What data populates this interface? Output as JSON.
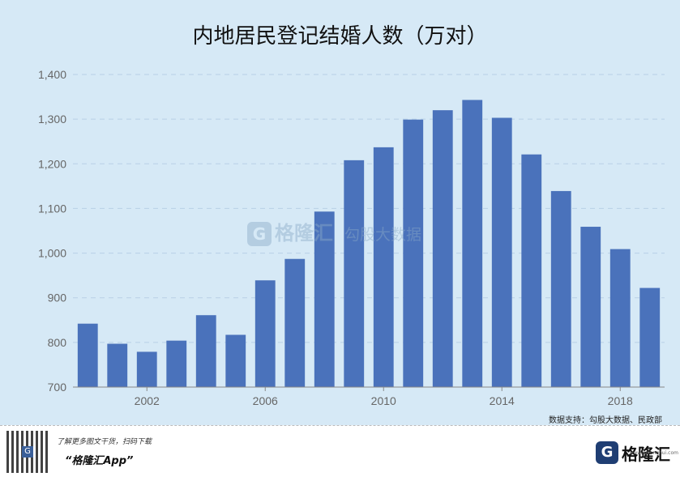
{
  "chart_data": {
    "type": "bar",
    "title": "内地居民登记结婚人数（万对）",
    "x": [
      2000,
      2001,
      2002,
      2003,
      2004,
      2005,
      2006,
      2007,
      2008,
      2009,
      2010,
      2011,
      2012,
      2013,
      2014,
      2015,
      2016,
      2017,
      2018,
      2019
    ],
    "values": [
      842,
      797,
      779,
      804,
      861,
      817,
      939,
      987,
      1093,
      1208,
      1237,
      1299,
      1320,
      1343,
      1303,
      1221,
      1139,
      1059,
      1009,
      922
    ],
    "x_tick_labels": [
      "2002",
      "2006",
      "2010",
      "2014",
      "2018"
    ],
    "x_tick_values": [
      2002,
      2006,
      2010,
      2014,
      2018
    ],
    "y_tick_labels": [
      "700",
      "800",
      "900",
      "1,000",
      "1,100",
      "1,200",
      "1,300",
      "1,400"
    ],
    "y_tick_values": [
      700,
      800,
      900,
      1000,
      1100,
      1200,
      1300,
      1400
    ],
    "ylim": [
      700,
      1400
    ],
    "grid": true,
    "bar_color": "#4a72bb"
  },
  "watermark": {
    "logo": "G",
    "text": "格隆汇",
    "sub": "勾股大数据"
  },
  "source": "数据支持：勾股大数据、民政部",
  "footer": {
    "qr_icon": "qr-code-icon",
    "qr_center": "G",
    "promo": "了解更多图文干货，扫码下载",
    "app_name": "“格隆汇App”",
    "brand_logo": "G",
    "brand_name": "格隆汇",
    "brand_url": "www.gelonghui.com"
  }
}
